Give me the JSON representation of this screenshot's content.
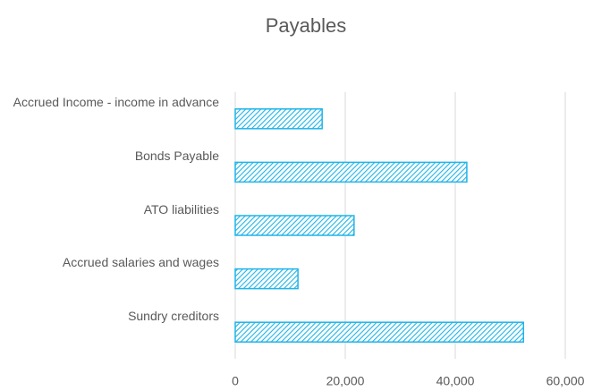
{
  "chart_data": {
    "type": "bar",
    "orientation": "horizontal",
    "title": "Payables",
    "categories": [
      "Accrued Income - income in advance",
      "Bonds Payable",
      "ATO liabilities",
      "Accrued salaries and wages",
      "Sundry creditors"
    ],
    "values": [
      15800,
      42100,
      21600,
      11400,
      52400
    ],
    "color": "#1fb4e8",
    "xlim": [
      0,
      60000
    ],
    "xticks": [
      0,
      {
        "value": 20000,
        "label": "20,000"
      },
      {
        "value": 40000,
        "label": "40,000"
      },
      {
        "value": 60000,
        "label": "60,000"
      }
    ],
    "grid": true
  }
}
